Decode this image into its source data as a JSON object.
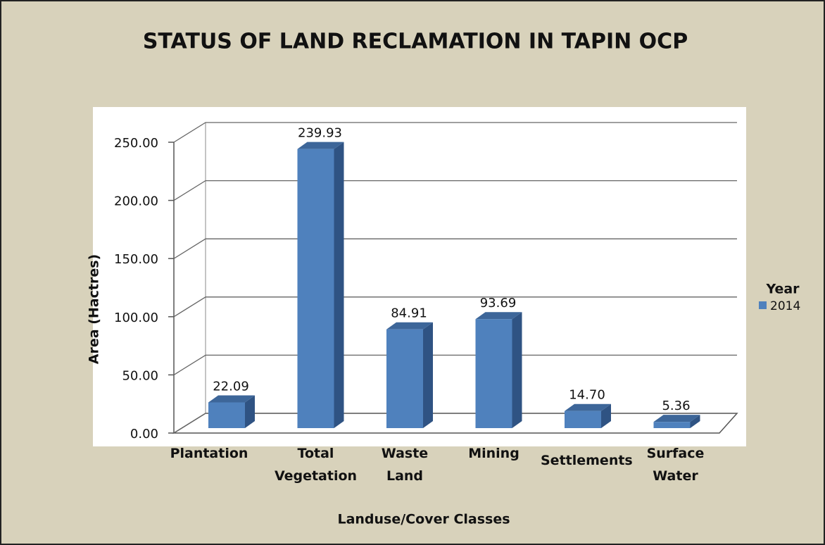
{
  "chart_data": {
    "type": "bar3d",
    "title": "STATUS OF LAND RECLAMATION IN TAPIN OCP",
    "y_label": "Area (Hactres)",
    "x_label": "Landuse/Cover Classes",
    "legend_title": "Year",
    "categories": [
      "Plantation",
      "Total Vegetation",
      "Waste Land",
      "Mining",
      "Settlements",
      "Surface Water"
    ],
    "series": [
      {
        "name": "2014",
        "color": "#4f81bd",
        "values": [
          22.09,
          239.93,
          84.91,
          93.69,
          14.7,
          5.36
        ],
        "value_labels": [
          "22.09",
          "239.93",
          "84.91",
          "93.69",
          "14.70",
          "5.36"
        ]
      }
    ],
    "ylim": [
      0,
      250
    ],
    "yticks": [
      {
        "value": 0,
        "label": "0.00"
      },
      {
        "value": 50,
        "label": "50.00"
      },
      {
        "value": 100,
        "label": "100.00"
      },
      {
        "value": 150,
        "label": "150.00"
      },
      {
        "value": 200,
        "label": "200.00"
      },
      {
        "value": 250,
        "label": "250.00"
      }
    ],
    "grid": true
  }
}
